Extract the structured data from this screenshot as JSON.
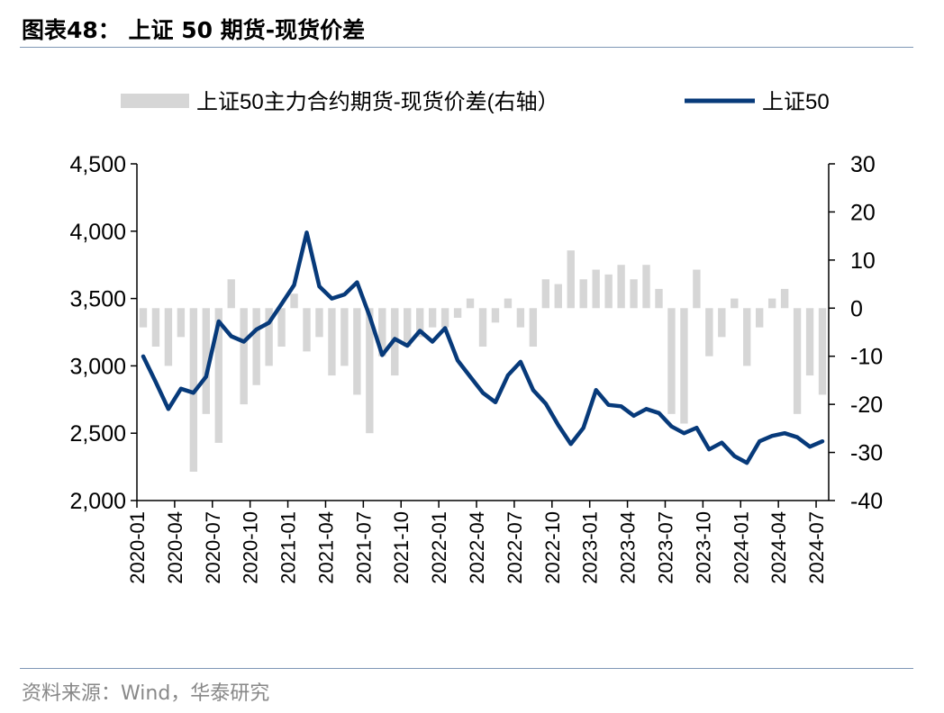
{
  "header": {
    "title": "图表48： 上证 50 期货-现货价差"
  },
  "footer": {
    "source": "资料来源：Wind，华泰研究"
  },
  "chart_data": {
    "type": "line",
    "legend_placement": "top",
    "colors": {
      "index_line": "#073a7a",
      "basis_bar": "#d6d6d6",
      "axis": "#000000"
    },
    "x_ticks": [
      "2020-01",
      "2020-04",
      "2020-07",
      "2020-10",
      "2021-01",
      "2021-04",
      "2021-07",
      "2021-10",
      "2022-01",
      "2022-04",
      "2022-07",
      "2022-10",
      "2023-01",
      "2023-04",
      "2023-07",
      "2023-10",
      "2024-01",
      "2024-04",
      "2024-07"
    ],
    "y_left": {
      "min": 2000,
      "max": 4500,
      "ticks": [
        "2,000",
        "2,500",
        "3,000",
        "3,500",
        "4,000",
        "4,500"
      ]
    },
    "y_right": {
      "min": -40,
      "max": 30,
      "ticks": [
        "-40",
        "-30",
        "-20",
        "-10",
        "0",
        "10",
        "20",
        "30"
      ]
    },
    "series": [
      {
        "name": "上证50主力合约期货-现货价差(右轴）",
        "type": "bar",
        "axis": "right",
        "x": [
          "2020-01",
          "2020-02",
          "2020-03",
          "2020-04",
          "2020-05",
          "2020-06",
          "2020-07",
          "2020-08",
          "2020-09",
          "2020-10",
          "2020-11",
          "2020-12",
          "2021-01",
          "2021-02",
          "2021-03",
          "2021-04",
          "2021-05",
          "2021-06",
          "2021-07",
          "2021-08",
          "2021-09",
          "2021-10",
          "2021-11",
          "2021-12",
          "2022-01",
          "2022-02",
          "2022-03",
          "2022-04",
          "2022-05",
          "2022-06",
          "2022-07",
          "2022-08",
          "2022-09",
          "2022-10",
          "2022-11",
          "2022-12",
          "2023-01",
          "2023-02",
          "2023-03",
          "2023-04",
          "2023-05",
          "2023-06",
          "2023-07",
          "2023-08",
          "2023-09",
          "2023-10",
          "2023-11",
          "2023-12",
          "2024-01",
          "2024-02",
          "2024-03",
          "2024-04",
          "2024-05",
          "2024-06",
          "2024-07"
        ],
        "values": [
          -4,
          -8,
          -12,
          -6,
          -34,
          -22,
          -28,
          6,
          -20,
          -16,
          -12,
          -8,
          3,
          -9,
          -6,
          -14,
          -12,
          -18,
          -26,
          -10,
          -14,
          -8,
          -6,
          -4,
          -4,
          -2,
          2,
          -8,
          -3,
          2,
          -4,
          -8,
          6,
          5,
          12,
          6,
          8,
          7,
          9,
          6,
          9,
          4,
          -22,
          -24,
          8,
          -10,
          -6,
          2,
          -12,
          -4,
          2,
          4,
          -22,
          -14,
          -18
        ]
      },
      {
        "name": "上证50",
        "type": "line",
        "axis": "left",
        "x": [
          "2020-01",
          "2020-02",
          "2020-03",
          "2020-04",
          "2020-05",
          "2020-06",
          "2020-07",
          "2020-08",
          "2020-09",
          "2020-10",
          "2020-11",
          "2020-12",
          "2021-01",
          "2021-02",
          "2021-03",
          "2021-04",
          "2021-05",
          "2021-06",
          "2021-07",
          "2021-08",
          "2021-09",
          "2021-10",
          "2021-11",
          "2021-12",
          "2022-01",
          "2022-02",
          "2022-03",
          "2022-04",
          "2022-05",
          "2022-06",
          "2022-07",
          "2022-08",
          "2022-09",
          "2022-10",
          "2022-11",
          "2022-12",
          "2023-01",
          "2023-02",
          "2023-03",
          "2023-04",
          "2023-05",
          "2023-06",
          "2023-07",
          "2023-08",
          "2023-09",
          "2023-10",
          "2023-11",
          "2023-12",
          "2024-01",
          "2024-02",
          "2024-03",
          "2024-04",
          "2024-05",
          "2024-06",
          "2024-07"
        ],
        "values": [
          3070,
          2880,
          2680,
          2830,
          2800,
          2920,
          3330,
          3220,
          3180,
          3270,
          3320,
          3460,
          3600,
          3990,
          3590,
          3500,
          3530,
          3620,
          3370,
          3080,
          3200,
          3150,
          3260,
          3180,
          3280,
          3040,
          2920,
          2800,
          2730,
          2930,
          3030,
          2820,
          2720,
          2560,
          2420,
          2540,
          2820,
          2710,
          2700,
          2630,
          2680,
          2650,
          2550,
          2500,
          2540,
          2380,
          2430,
          2330,
          2280,
          2440,
          2480,
          2500,
          2470,
          2400,
          2440
        ]
      }
    ]
  }
}
